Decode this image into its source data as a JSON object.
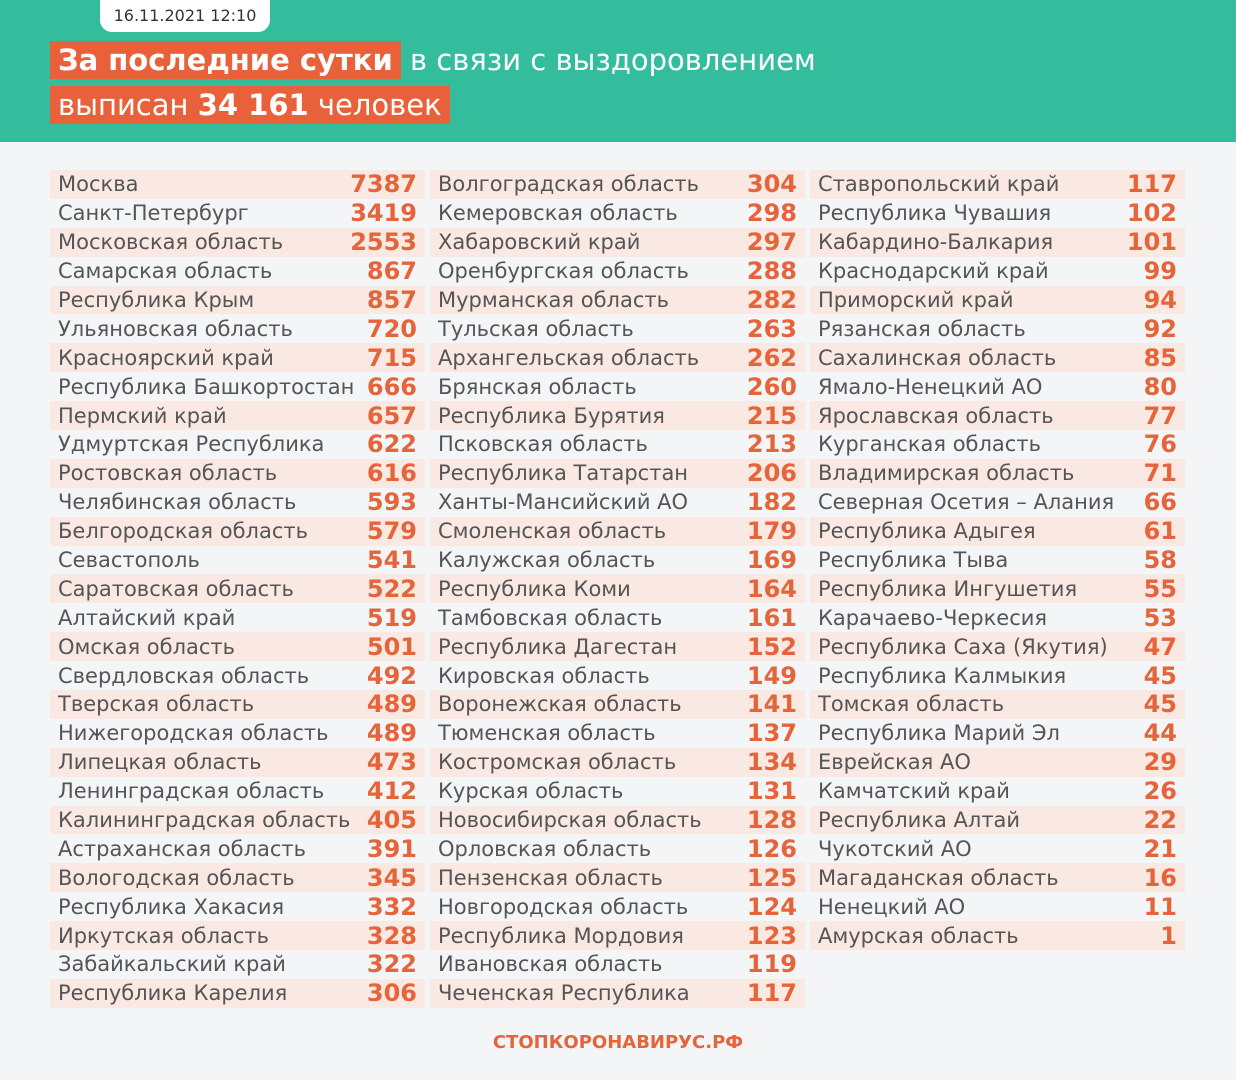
{
  "header": {
    "date": "16.11.2021 12:10",
    "title_highlight": "За последние сутки",
    "title_rest": "в связи с выздоровлением",
    "line2_start": "выписан",
    "line2_number": "34 161",
    "line2_end": "человек"
  },
  "table": {
    "columns": [
      [
        [
          "Москва",
          7387
        ],
        [
          "Санкт-Петербург",
          3419
        ],
        [
          "Московская область",
          2553
        ],
        [
          "Самарская область",
          867
        ],
        [
          "Республика Крым",
          857
        ],
        [
          "Ульяновская область",
          720
        ],
        [
          "Красноярский край",
          715
        ],
        [
          "Республика Башкортостан",
          666
        ],
        [
          "Пермский край",
          657
        ],
        [
          "Удмуртская Республика",
          622
        ],
        [
          "Ростовская область",
          616
        ],
        [
          "Челябинская область",
          593
        ],
        [
          "Белгородская область",
          579
        ],
        [
          "Севастополь",
          541
        ],
        [
          "Саратовская область",
          522
        ],
        [
          "Алтайский край",
          519
        ],
        [
          "Омская область",
          501
        ],
        [
          "Свердловская область",
          492
        ],
        [
          "Тверская область",
          489
        ],
        [
          "Нижегородская область",
          489
        ],
        [
          "Липецкая область",
          473
        ],
        [
          "Ленинградская область",
          412
        ],
        [
          "Калининградская область",
          405
        ],
        [
          "Астраханская область",
          391
        ],
        [
          "Вологодская область",
          345
        ],
        [
          "Республика Хакасия",
          332
        ],
        [
          "Иркутская область",
          328
        ],
        [
          "Забайкальский край",
          322
        ],
        [
          "Республика Карелия",
          306
        ]
      ],
      [
        [
          "Волгоградская область",
          304
        ],
        [
          "Кемеровская область",
          298
        ],
        [
          "Хабаровский край",
          297
        ],
        [
          "Оренбургская область",
          288
        ],
        [
          "Мурманская область",
          282
        ],
        [
          "Тульская область",
          263
        ],
        [
          "Архангельская область",
          262
        ],
        [
          "Брянская область",
          260
        ],
        [
          "Республика Бурятия",
          215
        ],
        [
          "Псковская область",
          213
        ],
        [
          "Республика Татарстан",
          206
        ],
        [
          "Ханты-Мансийский АО",
          182
        ],
        [
          "Смоленская область",
          179
        ],
        [
          "Калужская область",
          169
        ],
        [
          "Республика Коми",
          164
        ],
        [
          "Тамбовская область",
          161
        ],
        [
          "Республика Дагестан",
          152
        ],
        [
          "Кировская область",
          149
        ],
        [
          "Воронежская область",
          141
        ],
        [
          "Тюменская область",
          137
        ],
        [
          "Костромская область",
          134
        ],
        [
          "Курская область",
          131
        ],
        [
          "Новосибирская область",
          128
        ],
        [
          "Орловская область",
          126
        ],
        [
          "Пензенская область",
          125
        ],
        [
          "Новгородская область",
          124
        ],
        [
          "Республика Мордовия",
          123
        ],
        [
          "Ивановская область",
          119
        ],
        [
          "Чеченская Республика",
          117
        ]
      ],
      [
        [
          "Ставропольский край",
          117
        ],
        [
          "Республика Чувашия",
          102
        ],
        [
          "Кабардино-Балкария",
          101
        ],
        [
          "Краснодарский край",
          99
        ],
        [
          "Приморский край",
          94
        ],
        [
          "Рязанская область",
          92
        ],
        [
          "Сахалинская область",
          85
        ],
        [
          "Ямало-Ненецкий АО",
          80
        ],
        [
          "Ярославская область",
          77
        ],
        [
          "Курганская область",
          76
        ],
        [
          "Владимирская область",
          71
        ],
        [
          "Северная Осетия – Алания",
          66
        ],
        [
          "Республика Адыгея",
          61
        ],
        [
          "Республика Тыва",
          58
        ],
        [
          "Республика Ингушетия",
          55
        ],
        [
          "Карачаево-Черкесия",
          53
        ],
        [
          "Республика Саха (Якутия)",
          47
        ],
        [
          "Республика Калмыкия",
          45
        ],
        [
          "Томская область",
          45
        ],
        [
          "Республика Марий Эл",
          44
        ],
        [
          "Еврейская АО",
          29
        ],
        [
          "Камчатский край",
          26
        ],
        [
          "Республика Алтай",
          22
        ],
        [
          "Чукотский АО",
          21
        ],
        [
          "Магаданская область",
          16
        ],
        [
          "Ненецкий АО",
          11
        ],
        [
          "Амурская область",
          1
        ]
      ]
    ]
  },
  "footer": {
    "logo": "СТОПКОРОНАВИРУС.РФ"
  }
}
